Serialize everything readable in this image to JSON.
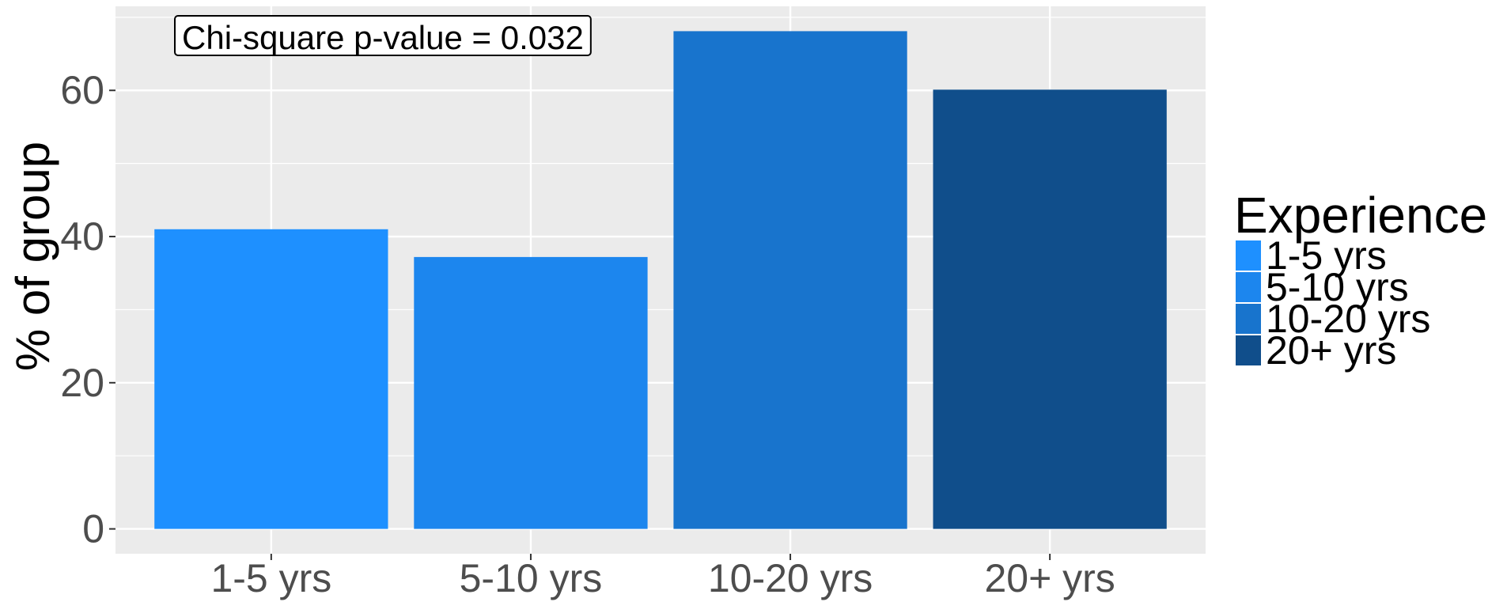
{
  "chart_data": {
    "type": "bar",
    "title": "",
    "xlabel": "",
    "ylabel": "% of group",
    "categories": [
      "1-5 yrs",
      "5-10 yrs",
      "10-20 yrs",
      "20+ yrs"
    ],
    "values": [
      41,
      37.2,
      68.1,
      60.1
    ],
    "colors": [
      "#1E90FF",
      "#1C86EE",
      "#1874CD",
      "#104E8B"
    ],
    "ylim": [
      -3.4,
      71.5
    ],
    "yticks": [
      0,
      20,
      40,
      60
    ],
    "grid": true,
    "panel_background": "#EBEBEB",
    "legend": {
      "title": "Experience",
      "position": "right",
      "entries": [
        "1-5 yrs",
        "5-10 yrs",
        "10-20 yrs",
        "20+ yrs"
      ]
    },
    "annotation": "Chi-square p-value =  0.032"
  }
}
